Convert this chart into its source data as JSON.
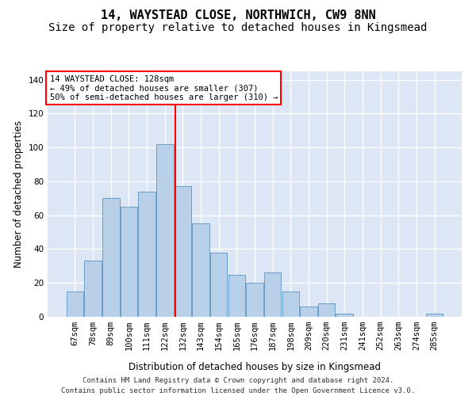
{
  "title": "14, WAYSTEAD CLOSE, NORTHWICH, CW9 8NN",
  "subtitle": "Size of property relative to detached houses in Kingsmead",
  "xlabel": "Distribution of detached houses by size in Kingsmead",
  "ylabel": "Number of detached properties",
  "categories": [
    "67sqm",
    "78sqm",
    "89sqm",
    "100sqm",
    "111sqm",
    "122sqm",
    "132sqm",
    "143sqm",
    "154sqm",
    "165sqm",
    "176sqm",
    "187sqm",
    "198sqm",
    "209sqm",
    "220sqm",
    "231sqm",
    "241sqm",
    "252sqm",
    "263sqm",
    "274sqm",
    "285sqm"
  ],
  "values": [
    15,
    33,
    70,
    65,
    74,
    102,
    77,
    55,
    38,
    25,
    20,
    26,
    15,
    6,
    8,
    2,
    0,
    0,
    0,
    0,
    2
  ],
  "bar_color": "#b8d0e8",
  "bar_edge_color": "#6a9fc8",
  "vline_color": "red",
  "annotation_text": "14 WAYSTEAD CLOSE: 128sqm\n← 49% of detached houses are smaller (307)\n50% of semi-detached houses are larger (310) →",
  "annotation_box_color": "white",
  "annotation_box_edge": "red",
  "ylim": [
    0,
    145
  ],
  "yticks": [
    0,
    20,
    40,
    60,
    80,
    100,
    120,
    140
  ],
  "bg_color": "#dce6f5",
  "grid_color": "white",
  "footer_line1": "Contains HM Land Registry data © Crown copyright and database right 2024.",
  "footer_line2": "Contains public sector information licensed under the Open Government Licence v3.0.",
  "title_fontsize": 11,
  "subtitle_fontsize": 10,
  "axis_label_fontsize": 8.5,
  "tick_fontsize": 7.5,
  "annotation_fontsize": 7.5,
  "footer_fontsize": 6.5
}
